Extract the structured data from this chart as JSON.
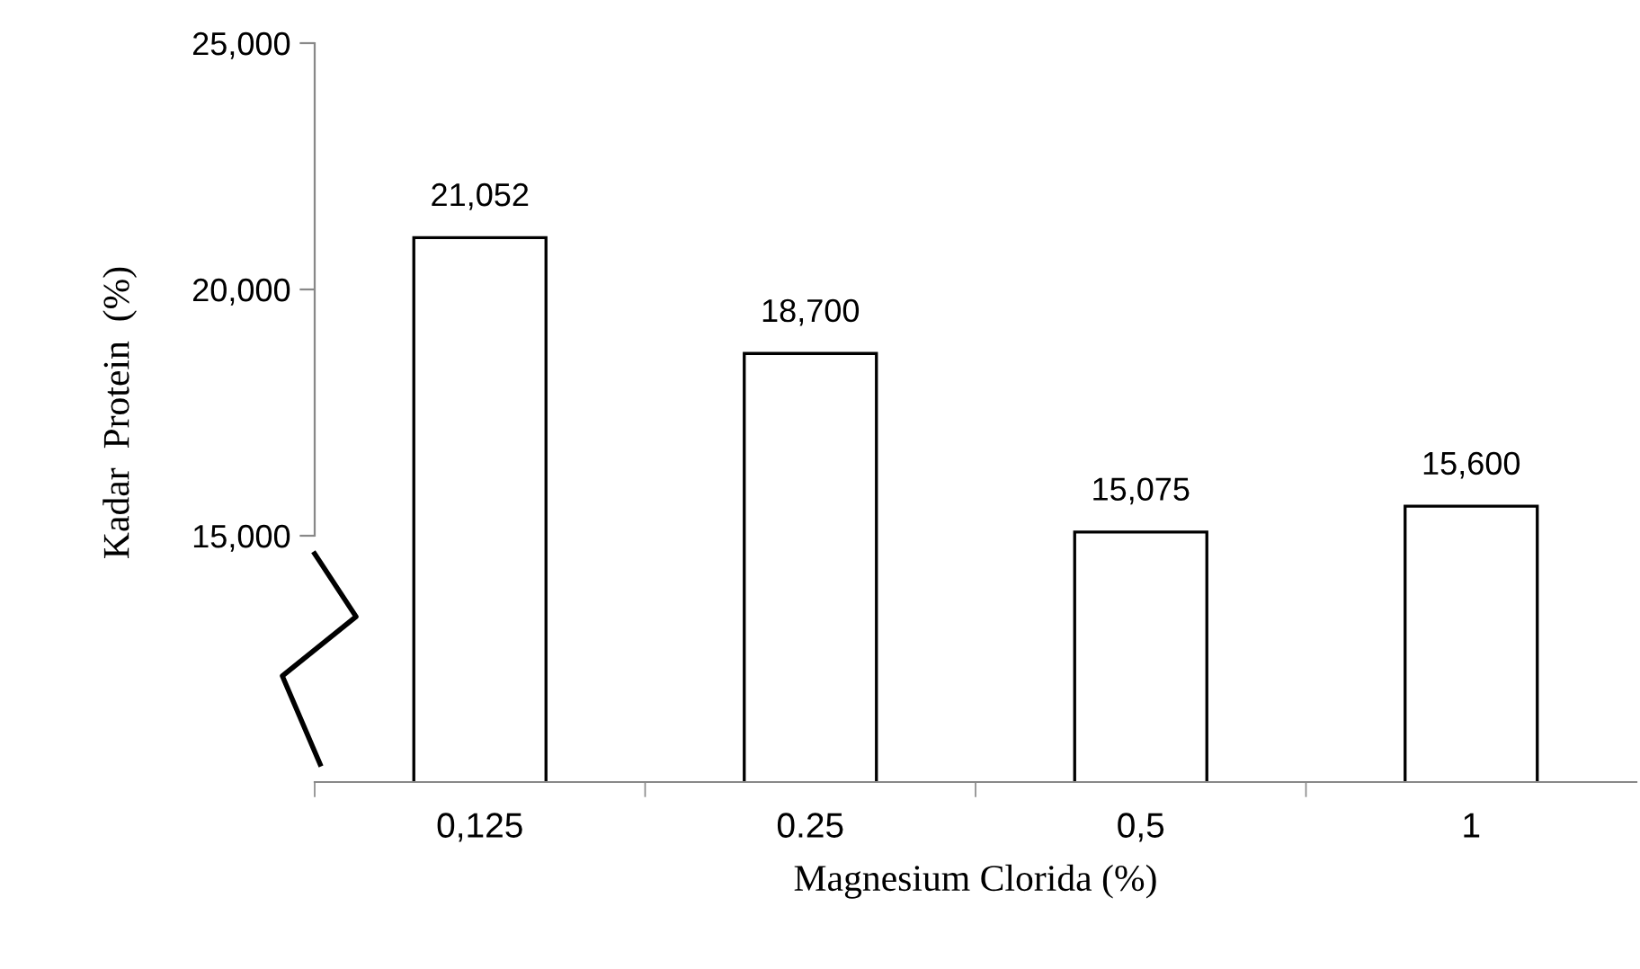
{
  "chart_data": {
    "type": "bar",
    "xlabel": "Magnesium Clorida (%)",
    "ylabel": "Kadar  Protein  (%)",
    "categories": [
      "0,125",
      "0.25",
      "0,5",
      "1"
    ],
    "values": [
      21.052,
      18.7,
      15.075,
      15.6
    ],
    "value_labels": [
      "21,052",
      "18,700",
      "15,075",
      "15,600"
    ],
    "color": "#ffffff",
    "ylim": [
      10,
      25
    ],
    "yticks": [
      {
        "value": 15,
        "label": "15,000"
      },
      {
        "value": 20,
        "label": "20,000"
      },
      {
        "value": 25,
        "label": "25,000"
      }
    ],
    "grid": false,
    "legend": false
  }
}
